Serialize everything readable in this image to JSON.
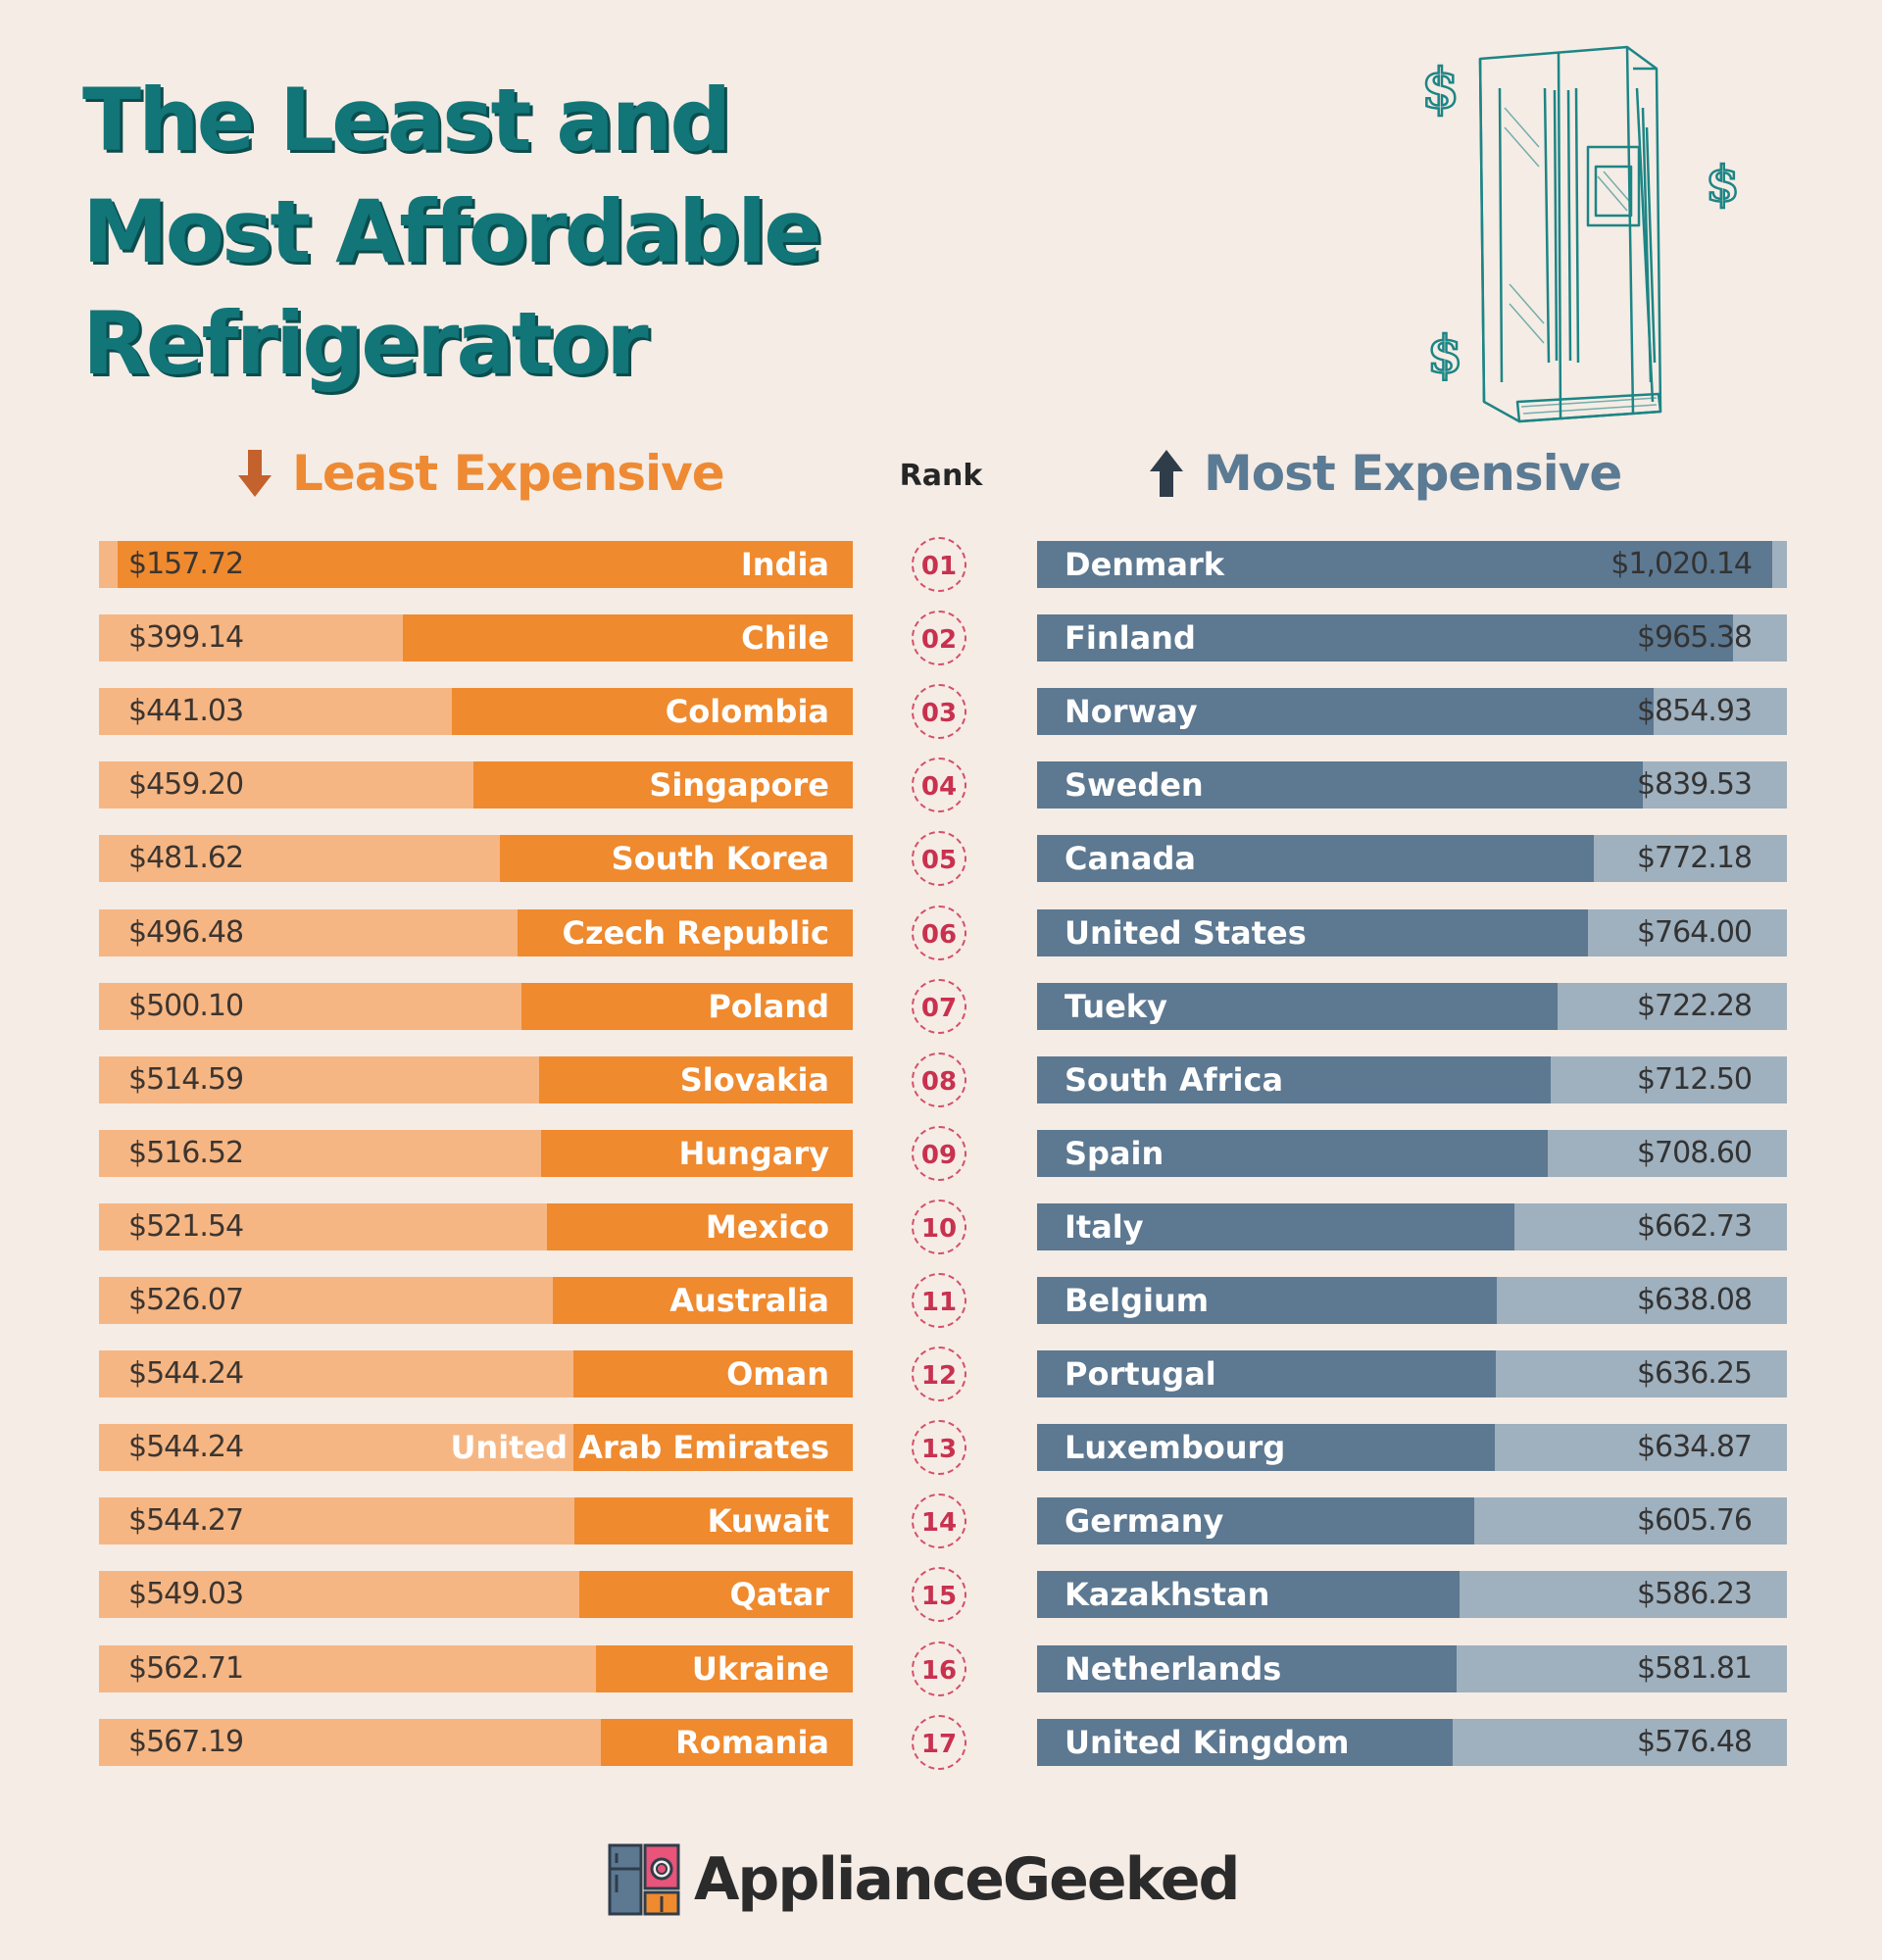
{
  "title_lines": [
    "The Least and",
    "Most Affordable",
    "Refrigerator"
  ],
  "headers": {
    "left": "Least Expensive",
    "right": "Most Expensive",
    "rank": "Rank"
  },
  "logo": "ApplianceGeeked",
  "colors": {
    "orange": "#ef8a2f",
    "orange_light": "#f6b683",
    "blue": "#5d7891",
    "blue_light": "#9fb0be",
    "teal": "#127577",
    "rank_red": "#c8314f"
  },
  "icons": [
    "down-arrow-icon",
    "up-arrow-icon",
    "refrigerator-icon",
    "dollar-icon",
    "appliancegeeked-logo-icon"
  ],
  "chart_data": [
    {
      "type": "bar",
      "title": "Least Expensive",
      "categories": [
        "India",
        "Chile",
        "Colombia",
        "Singapore",
        "South Korea",
        "Czech Republic",
        "Poland",
        "Slovakia",
        "Hungary",
        "Mexico",
        "Australia",
        "Oman",
        "United Arab Emirates",
        "Kuwait",
        "Qatar",
        "Ukraine",
        "Romania"
      ],
      "values": [
        157.72,
        399.14,
        441.03,
        459.2,
        481.62,
        496.48,
        500.1,
        514.59,
        516.52,
        521.54,
        526.07,
        544.24,
        544.24,
        544.27,
        549.03,
        562.71,
        567.19
      ],
      "labels": [
        "$157.72",
        "$399.14",
        "$441.03",
        "$459.20",
        "$481.62",
        "$496.48",
        "$500.10",
        "$514.59",
        "$516.52",
        "$521.54",
        "$526.07",
        "$544.24",
        "$544.24",
        "$544.27",
        "$549.03",
        "$562.71",
        "$567.19"
      ]
    },
    {
      "type": "bar",
      "title": "Most Expensive",
      "categories": [
        "Denmark",
        "Finland",
        "Norway",
        "Sweden",
        "Canada",
        "United States",
        "Tueky",
        "South Africa",
        "Spain",
        "Italy",
        "Belgium",
        "Portugal",
        "Luxembourg",
        "Germany",
        "Kazakhstan",
        "Netherlands",
        "United Kingdom"
      ],
      "values": [
        1020.14,
        965.38,
        854.93,
        839.53,
        772.18,
        764.0,
        722.28,
        712.5,
        708.6,
        662.73,
        638.08,
        636.25,
        634.87,
        605.76,
        586.23,
        581.81,
        576.48
      ],
      "labels": [
        "$1,020.14",
        "$965.38",
        "$854.93",
        "$839.53",
        "$772.18",
        "$764.00",
        "$722.28",
        "$712.50",
        "$708.60",
        "$662.73",
        "$638.08",
        "$636.25",
        "$634.87",
        "$605.76",
        "$586.23",
        "$581.81",
        "$576.48"
      ]
    }
  ],
  "ranks": [
    "01",
    "02",
    "03",
    "04",
    "05",
    "06",
    "07",
    "08",
    "09",
    "10",
    "11",
    "12",
    "13",
    "14",
    "15",
    "16",
    "17"
  ]
}
